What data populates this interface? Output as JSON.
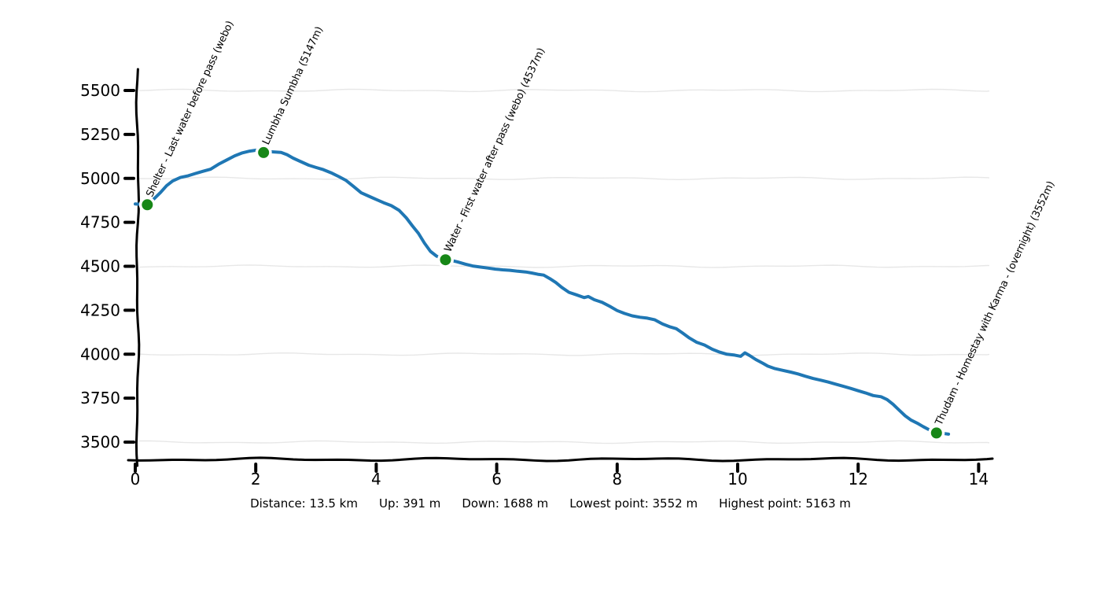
{
  "chart_data": {
    "type": "line",
    "x_ticks": [
      0,
      2,
      4,
      6,
      8,
      10,
      12,
      14
    ],
    "y_ticks": [
      3500,
      3750,
      4000,
      4250,
      4500,
      4750,
      5000,
      5250,
      5500
    ],
    "xlim": [
      0,
      14.2
    ],
    "ylim": [
      3400,
      5620
    ],
    "grid": "horizontal gridlines every 500 m",
    "grid_elevations": [
      3500,
      4000,
      4500,
      5000,
      5500
    ],
    "legend_position": "none",
    "line_color": "#1f77b4",
    "marker_color": "#178717",
    "axis_color": "#000000",
    "grid_color": "#e7e7e7",
    "series": [
      {
        "name": "elevation-profile",
        "x_unit": "km",
        "y_unit": "m",
        "points": [
          [
            0.0,
            4855
          ],
          [
            0.1,
            4852
          ],
          [
            0.2,
            4850
          ],
          [
            0.3,
            4880
          ],
          [
            0.42,
            4920
          ],
          [
            0.52,
            4958
          ],
          [
            0.62,
            4985
          ],
          [
            0.75,
            5005
          ],
          [
            0.88,
            5015
          ],
          [
            1.0,
            5028
          ],
          [
            1.12,
            5040
          ],
          [
            1.25,
            5052
          ],
          [
            1.38,
            5080
          ],
          [
            1.52,
            5105
          ],
          [
            1.65,
            5128
          ],
          [
            1.78,
            5145
          ],
          [
            1.9,
            5155
          ],
          [
            2.0,
            5160
          ],
          [
            2.06,
            5163
          ],
          [
            2.13,
            5147
          ],
          [
            2.22,
            5152
          ],
          [
            2.32,
            5150
          ],
          [
            2.42,
            5148
          ],
          [
            2.52,
            5135
          ],
          [
            2.62,
            5115
          ],
          [
            2.75,
            5095
          ],
          [
            2.88,
            5075
          ],
          [
            3.0,
            5062
          ],
          [
            3.12,
            5050
          ],
          [
            3.25,
            5032
          ],
          [
            3.38,
            5010
          ],
          [
            3.5,
            4988
          ],
          [
            3.62,
            4955
          ],
          [
            3.75,
            4918
          ],
          [
            3.88,
            4898
          ],
          [
            4.0,
            4880
          ],
          [
            4.12,
            4862
          ],
          [
            4.25,
            4845
          ],
          [
            4.38,
            4818
          ],
          [
            4.5,
            4775
          ],
          [
            4.6,
            4730
          ],
          [
            4.7,
            4688
          ],
          [
            4.8,
            4632
          ],
          [
            4.9,
            4585
          ],
          [
            5.0,
            4558
          ],
          [
            5.08,
            4545
          ],
          [
            5.15,
            4537
          ],
          [
            5.25,
            4533
          ],
          [
            5.35,
            4525
          ],
          [
            5.48,
            4512
          ],
          [
            5.6,
            4502
          ],
          [
            5.72,
            4496
          ],
          [
            5.85,
            4490
          ],
          [
            5.98,
            4484
          ],
          [
            6.1,
            4480
          ],
          [
            6.22,
            4477
          ],
          [
            6.35,
            4472
          ],
          [
            6.48,
            4468
          ],
          [
            6.58,
            4462
          ],
          [
            6.68,
            4455
          ],
          [
            6.78,
            4450
          ],
          [
            6.88,
            4430
          ],
          [
            6.98,
            4408
          ],
          [
            7.08,
            4380
          ],
          [
            7.2,
            4352
          ],
          [
            7.32,
            4338
          ],
          [
            7.45,
            4322
          ],
          [
            7.52,
            4328
          ],
          [
            7.62,
            4310
          ],
          [
            7.75,
            4295
          ],
          [
            7.88,
            4272
          ],
          [
            8.0,
            4248
          ],
          [
            8.12,
            4232
          ],
          [
            8.25,
            4218
          ],
          [
            8.38,
            4210
          ],
          [
            8.5,
            4205
          ],
          [
            8.62,
            4196
          ],
          [
            8.75,
            4172
          ],
          [
            8.88,
            4155
          ],
          [
            8.98,
            4145
          ],
          [
            9.08,
            4122
          ],
          [
            9.2,
            4092
          ],
          [
            9.32,
            4068
          ],
          [
            9.45,
            4052
          ],
          [
            9.58,
            4028
          ],
          [
            9.7,
            4012
          ],
          [
            9.82,
            4000
          ],
          [
            9.95,
            3995
          ],
          [
            10.05,
            3988
          ],
          [
            10.12,
            4008
          ],
          [
            10.2,
            3992
          ],
          [
            10.3,
            3970
          ],
          [
            10.42,
            3948
          ],
          [
            10.5,
            3932
          ],
          [
            10.62,
            3918
          ],
          [
            10.75,
            3908
          ],
          [
            10.88,
            3898
          ],
          [
            11.0,
            3888
          ],
          [
            11.12,
            3875
          ],
          [
            11.25,
            3862
          ],
          [
            11.38,
            3852
          ],
          [
            11.5,
            3842
          ],
          [
            11.62,
            3830
          ],
          [
            11.75,
            3818
          ],
          [
            11.88,
            3805
          ],
          [
            12.0,
            3792
          ],
          [
            12.12,
            3780
          ],
          [
            12.25,
            3765
          ],
          [
            12.38,
            3758
          ],
          [
            12.48,
            3742
          ],
          [
            12.58,
            3715
          ],
          [
            12.68,
            3682
          ],
          [
            12.78,
            3650
          ],
          [
            12.88,
            3625
          ],
          [
            12.98,
            3608
          ],
          [
            13.08,
            3588
          ],
          [
            13.18,
            3570
          ],
          [
            13.3,
            3552
          ],
          [
            13.4,
            3550
          ],
          [
            13.5,
            3545
          ]
        ]
      }
    ],
    "waypoints": [
      {
        "km": 0.2,
        "elevation": 4850,
        "label": "Shelter - Last water before pass (webo)"
      },
      {
        "km": 2.13,
        "elevation": 5147,
        "label": "Lumbha Sumbha (5147m)"
      },
      {
        "km": 5.15,
        "elevation": 4537,
        "label": "Water - First water after pass (webo) (4537m)"
      },
      {
        "km": 13.3,
        "elevation": 3552,
        "label": "Thudam - Homestay with Karma - (overnight) (3552m)"
      }
    ]
  },
  "stats_bar": {
    "distance": "Distance: 13.5 km",
    "up": "Up: 391 m",
    "down": "Down: 1688 m",
    "lowest": "Lowest point: 3552 m",
    "highest": "Highest point: 5163 m"
  }
}
